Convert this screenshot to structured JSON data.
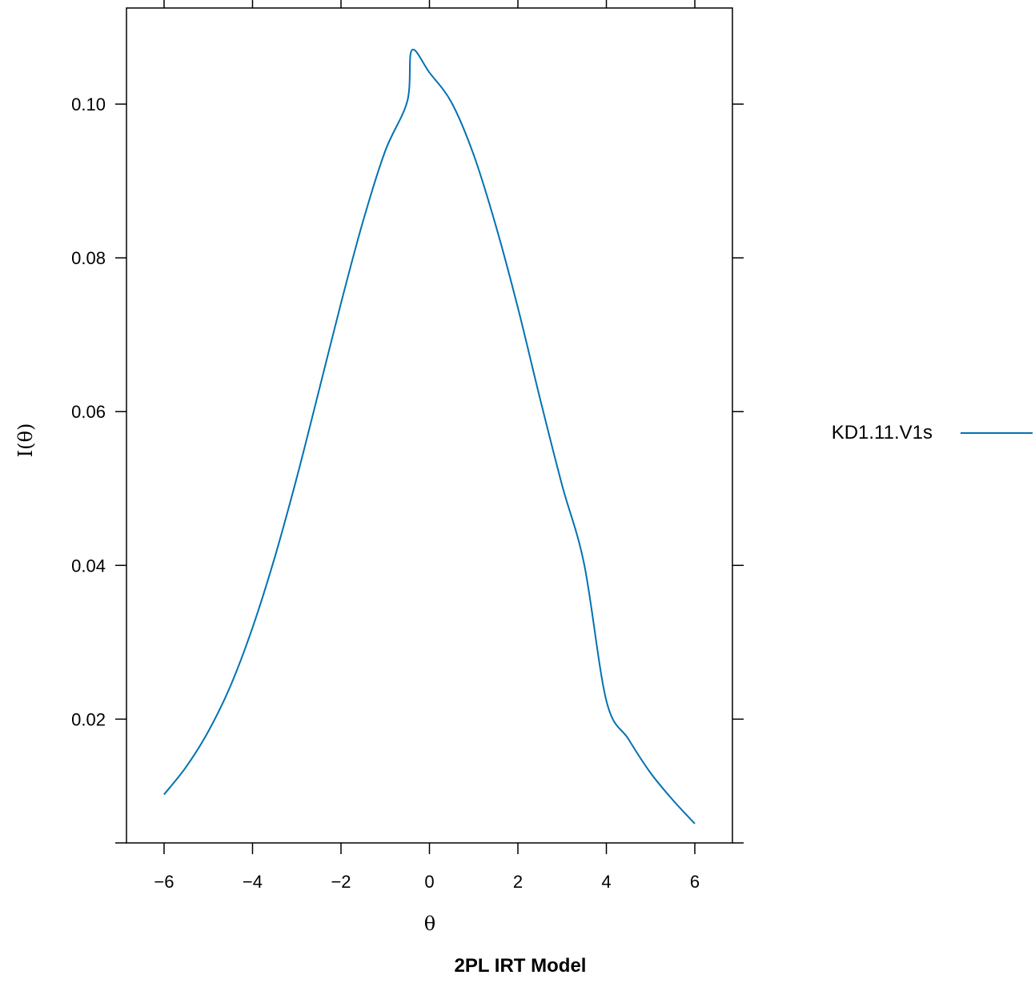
{
  "chart_data": {
    "type": "line",
    "title": "",
    "caption": "2PL IRT Model",
    "xlabel": "θ",
    "ylabel": "I(θ)",
    "xlim": [
      -6.85,
      6.85
    ],
    "ylim": [
      0.0039,
      0.1125
    ],
    "x_ticks": [
      -6,
      -4,
      -2,
      0,
      2,
      4,
      6
    ],
    "x_tick_labels": [
      "−6",
      "−4",
      "−2",
      "0",
      "2",
      "4",
      "6"
    ],
    "y_ticks": [
      0.02,
      0.04,
      0.06,
      0.08,
      0.1
    ],
    "y_tick_labels": [
      "0.02",
      "0.04",
      "0.06",
      "0.08",
      "0.10"
    ],
    "grid": false,
    "legend_position": "right",
    "series": [
      {
        "name": "KD1.11.V1s",
        "color": "#0072b2",
        "x": [
          -6,
          -5.5,
          -5,
          -4.5,
          -4,
          -3.5,
          -3,
          -2.5,
          -2,
          -1.5,
          -1,
          -0.5,
          -0.4,
          0,
          0.5,
          1,
          1.5,
          2,
          2.5,
          3,
          3.5,
          4,
          4.5,
          5,
          5.5,
          6
        ],
        "y": [
          0.0102,
          0.0138,
          0.0184,
          0.0243,
          0.0319,
          0.041,
          0.0514,
          0.0627,
          0.0741,
          0.0848,
          0.0939,
          0.1004,
          0.107,
          0.1041,
          0.1002,
          0.0934,
          0.0842,
          0.0735,
          0.0617,
          0.0504,
          0.0401,
          0.0224,
          0.0174,
          0.013,
          0.0095,
          0.0064
        ]
      }
    ]
  }
}
